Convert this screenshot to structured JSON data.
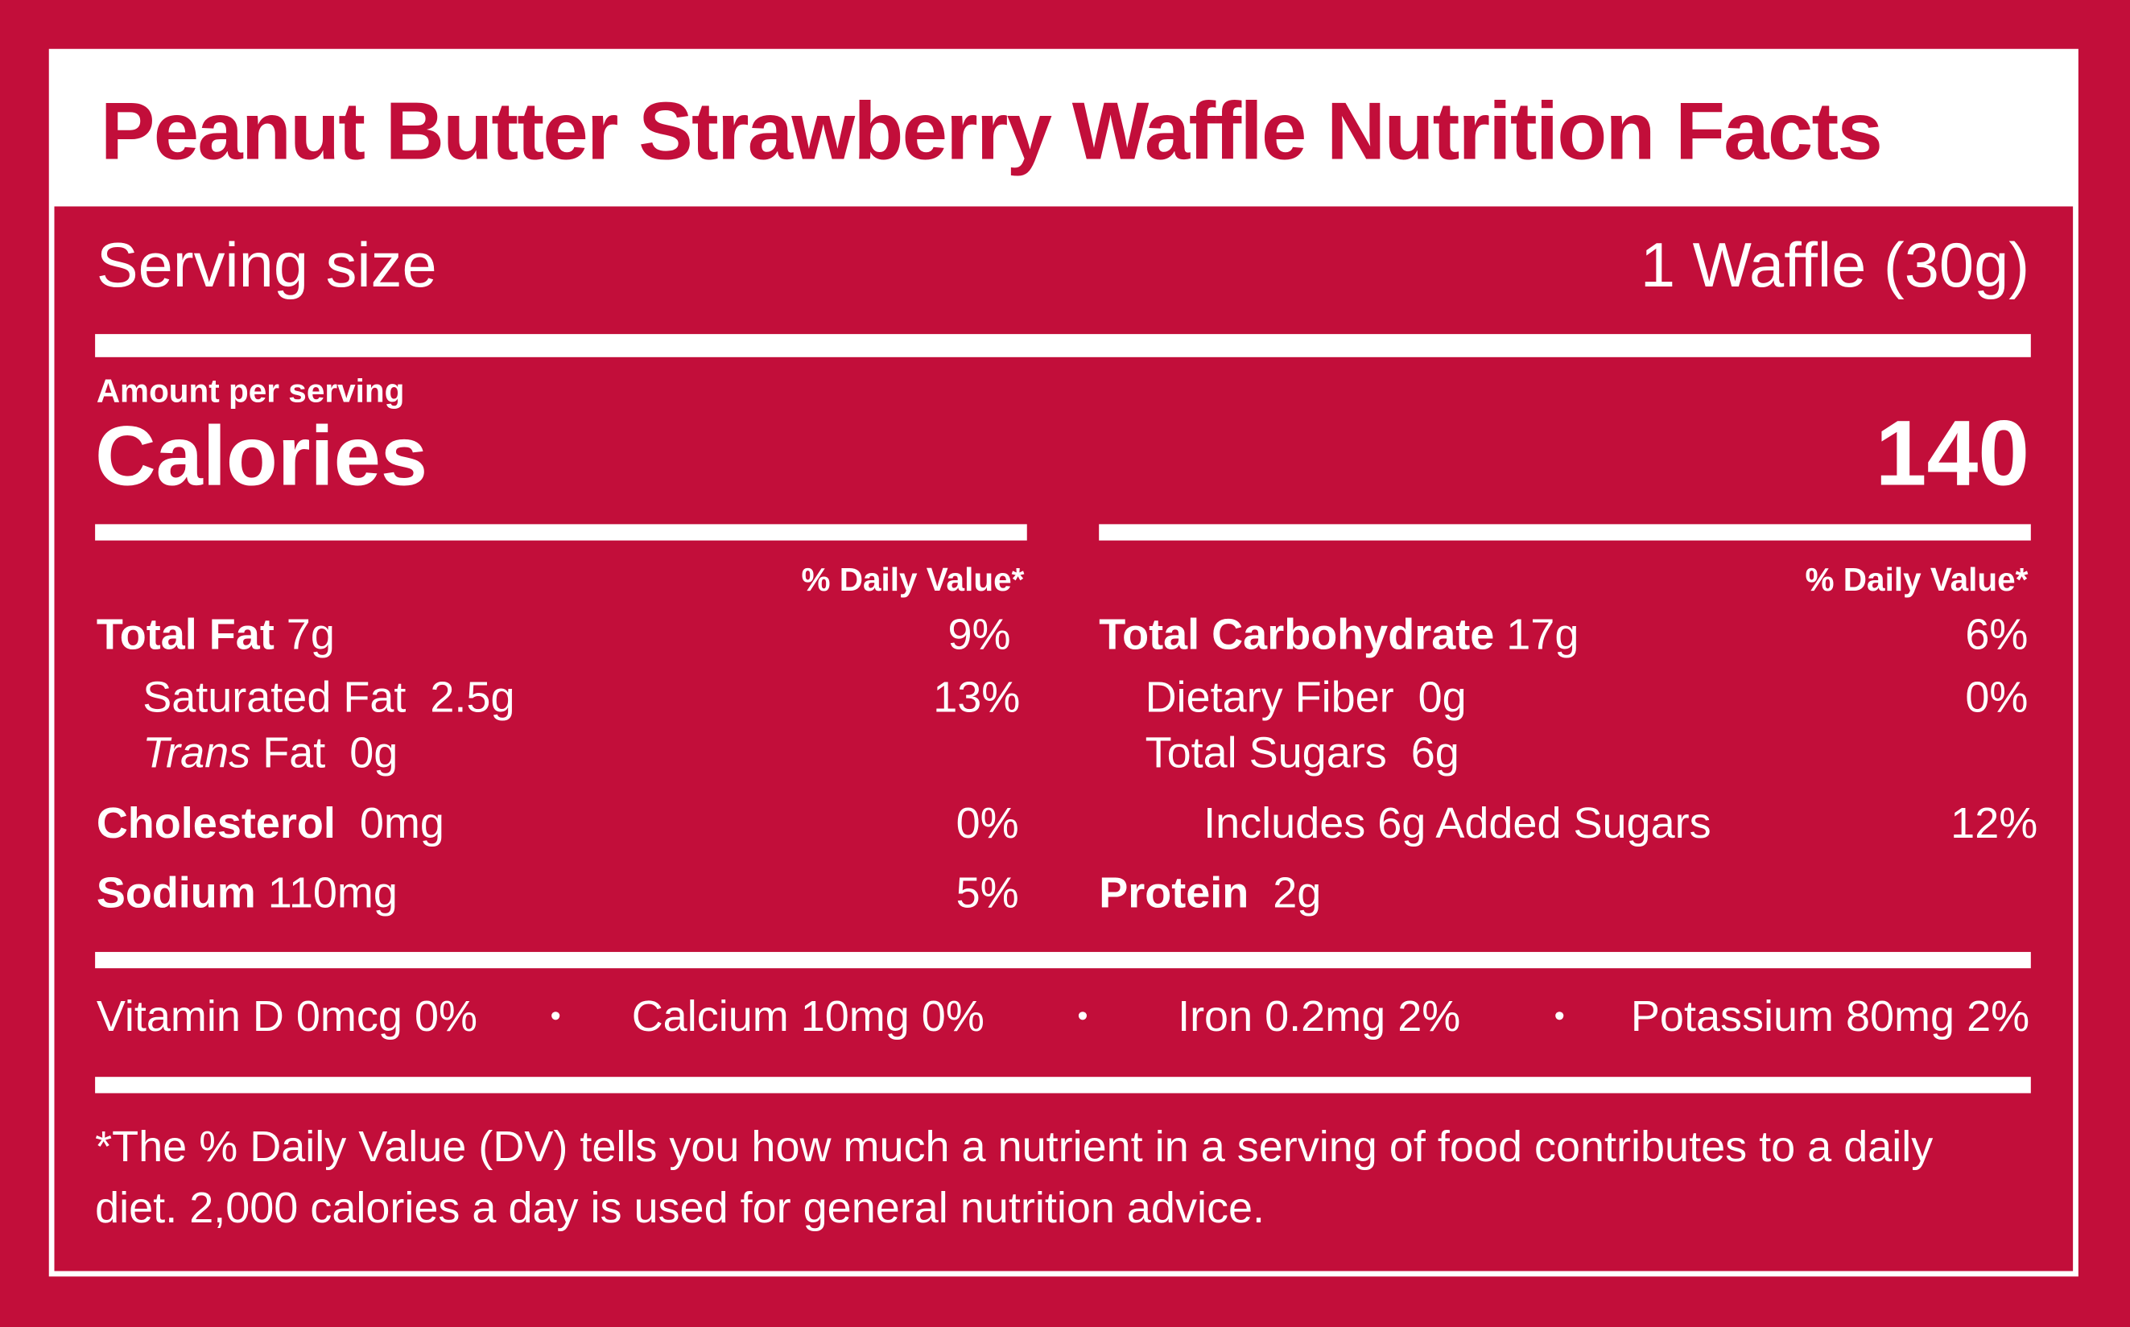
{
  "brand_color": "#c20e3a",
  "title": "Peanut Butter Strawberry Waffle Nutrition Facts",
  "serving": {
    "label": "Serving size",
    "value": "1 Waffle (30g)"
  },
  "calories": {
    "amount_per_serving": "Amount per serving",
    "label": "Calories",
    "value": "140"
  },
  "left_column": {
    "dv_header": "% Daily Value*",
    "total_fat": {
      "label": "Total Fat",
      "amount": "7g",
      "dv": "9%"
    },
    "saturated_fat": {
      "label": "Saturated Fat",
      "amount": "2.5g",
      "dv": "13%"
    },
    "trans_fat": {
      "label_italic": "Trans",
      "label_rest": "Fat",
      "amount": "0g"
    },
    "cholesterol": {
      "label": "Cholesterol",
      "amount": "0mg",
      "dv": "0%"
    },
    "sodium": {
      "label": "Sodium",
      "amount": "110mg",
      "dv": "5%"
    }
  },
  "right_column": {
    "dv_header": "% Daily Value*",
    "total_carbohydrate": {
      "label": "Total Carbohydrate",
      "amount": "17g",
      "dv": "6%"
    },
    "dietary_fiber": {
      "label": "Dietary Fiber",
      "amount": "0g",
      "dv": "0%"
    },
    "total_sugars": {
      "label": "Total Sugars",
      "amount": "6g"
    },
    "added_sugars": {
      "label": "Includes 6g Added Sugars",
      "dv": "12%"
    },
    "protein": {
      "label": "Protein",
      "amount": "2g"
    }
  },
  "vitamins": [
    {
      "text": "Vitamin D 0mcg 0%"
    },
    {
      "text": "Calcium 10mg 0%"
    },
    {
      "text": "Iron 0.2mg 2%"
    },
    {
      "text": "Potassium 80mg 2%"
    }
  ],
  "footnote": {
    "line1": "*The % Daily Value (DV) tells you how much a nutrient in a serving of food contributes to a daily",
    "line2": "diet. 2,000 calories a day is used for general nutrition advice."
  }
}
